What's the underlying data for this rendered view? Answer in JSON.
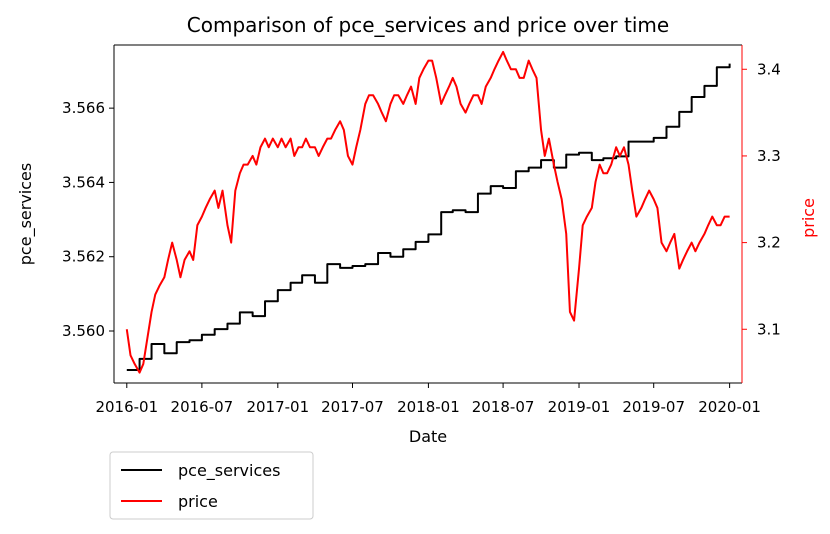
{
  "chart_data": {
    "type": "line",
    "title": "Comparison of pce_services and price over time",
    "xlabel": "Date",
    "ylabel_left": "pce_services",
    "ylabel_right": "price",
    "x_ticks": [
      "2016-01",
      "2016-07",
      "2017-01",
      "2017-07",
      "2018-01",
      "2018-07",
      "2019-01",
      "2019-07",
      "2020-01"
    ],
    "y_left_ticks": [
      "3.560",
      "3.562",
      "3.564",
      "3.566"
    ],
    "y_right_ticks": [
      "3.1",
      "3.2",
      "3.3",
      "3.4"
    ],
    "xlim": [
      "2015-12-01",
      "2020-01-31"
    ],
    "ylim_left": [
      3.5586,
      3.5677
    ],
    "ylim_right": [
      3.038,
      3.428
    ],
    "legend_position": "below-left",
    "colors": {
      "pce_services": "#000000",
      "price": "#ff0000",
      "right_axis": "#ff0000"
    },
    "series": [
      {
        "name": "pce_services",
        "axis": "left",
        "color": "#000000",
        "step": true,
        "points": [
          [
            "2016-01-01",
            3.55895
          ],
          [
            "2016-02-01",
            3.55925
          ],
          [
            "2016-03-01",
            3.55965
          ],
          [
            "2016-04-01",
            3.5594
          ],
          [
            "2016-05-01",
            3.5597
          ],
          [
            "2016-06-01",
            3.55975
          ],
          [
            "2016-07-01",
            3.5599
          ],
          [
            "2016-08-01",
            3.56005
          ],
          [
            "2016-09-01",
            3.5602
          ],
          [
            "2016-10-01",
            3.5605
          ],
          [
            "2016-11-01",
            3.5604
          ],
          [
            "2016-12-01",
            3.5608
          ],
          [
            "2017-01-01",
            3.5611
          ],
          [
            "2017-02-01",
            3.5613
          ],
          [
            "2017-03-01",
            3.5615
          ],
          [
            "2017-04-01",
            3.5613
          ],
          [
            "2017-05-01",
            3.5618
          ],
          [
            "2017-06-01",
            3.5617
          ],
          [
            "2017-07-01",
            3.56175
          ],
          [
            "2017-08-01",
            3.5618
          ],
          [
            "2017-09-01",
            3.5621
          ],
          [
            "2017-10-01",
            3.562
          ],
          [
            "2017-11-01",
            3.5622
          ],
          [
            "2017-12-01",
            3.5624
          ],
          [
            "2018-01-01",
            3.5626
          ],
          [
            "2018-02-01",
            3.5632
          ],
          [
            "2018-03-01",
            3.56325
          ],
          [
            "2018-04-01",
            3.5632
          ],
          [
            "2018-05-01",
            3.5637
          ],
          [
            "2018-06-01",
            3.5639
          ],
          [
            "2018-07-01",
            3.56385
          ],
          [
            "2018-08-01",
            3.5643
          ],
          [
            "2018-09-01",
            3.5644
          ],
          [
            "2018-10-01",
            3.5646
          ],
          [
            "2018-11-01",
            3.5644
          ],
          [
            "2018-12-01",
            3.56475
          ],
          [
            "2019-01-01",
            3.5648
          ],
          [
            "2019-02-01",
            3.5646
          ],
          [
            "2019-03-01",
            3.56465
          ],
          [
            "2019-04-01",
            3.5647
          ],
          [
            "2019-05-01",
            3.5651
          ],
          [
            "2019-06-01",
            3.5651
          ],
          [
            "2019-07-01",
            3.5652
          ],
          [
            "2019-08-01",
            3.5655
          ],
          [
            "2019-09-01",
            3.5659
          ],
          [
            "2019-10-01",
            3.5663
          ],
          [
            "2019-11-01",
            3.5666
          ],
          [
            "2019-12-01",
            3.5671
          ],
          [
            "2020-01-01",
            3.5672
          ]
        ]
      },
      {
        "name": "price",
        "axis": "right",
        "color": "#ff0000",
        "step": false,
        "points": [
          [
            "2016-01-01",
            3.1
          ],
          [
            "2016-01-10",
            3.07
          ],
          [
            "2016-01-20",
            3.06
          ],
          [
            "2016-02-01",
            3.05
          ],
          [
            "2016-02-10",
            3.06
          ],
          [
            "2016-02-20",
            3.09
          ],
          [
            "2016-03-01",
            3.12
          ],
          [
            "2016-03-10",
            3.14
          ],
          [
            "2016-03-20",
            3.15
          ],
          [
            "2016-04-01",
            3.16
          ],
          [
            "2016-04-10",
            3.18
          ],
          [
            "2016-04-20",
            3.2
          ],
          [
            "2016-05-01",
            3.18
          ],
          [
            "2016-05-10",
            3.16
          ],
          [
            "2016-05-20",
            3.18
          ],
          [
            "2016-06-01",
            3.19
          ],
          [
            "2016-06-10",
            3.18
          ],
          [
            "2016-06-20",
            3.22
          ],
          [
            "2016-07-01",
            3.23
          ],
          [
            "2016-07-10",
            3.24
          ],
          [
            "2016-07-20",
            3.25
          ],
          [
            "2016-08-01",
            3.26
          ],
          [
            "2016-08-10",
            3.24
          ],
          [
            "2016-08-20",
            3.26
          ],
          [
            "2016-09-01",
            3.22
          ],
          [
            "2016-09-10",
            3.2
          ],
          [
            "2016-09-20",
            3.26
          ],
          [
            "2016-10-01",
            3.28
          ],
          [
            "2016-10-10",
            3.29
          ],
          [
            "2016-10-20",
            3.29
          ],
          [
            "2016-11-01",
            3.3
          ],
          [
            "2016-11-10",
            3.29
          ],
          [
            "2016-11-20",
            3.31
          ],
          [
            "2016-12-01",
            3.32
          ],
          [
            "2016-12-10",
            3.31
          ],
          [
            "2016-12-20",
            3.32
          ],
          [
            "2017-01-01",
            3.31
          ],
          [
            "2017-01-10",
            3.32
          ],
          [
            "2017-01-20",
            3.31
          ],
          [
            "2017-02-01",
            3.32
          ],
          [
            "2017-02-10",
            3.3
          ],
          [
            "2017-02-20",
            3.31
          ],
          [
            "2017-03-01",
            3.31
          ],
          [
            "2017-03-10",
            3.32
          ],
          [
            "2017-03-20",
            3.31
          ],
          [
            "2017-04-01",
            3.31
          ],
          [
            "2017-04-10",
            3.3
          ],
          [
            "2017-04-20",
            3.31
          ],
          [
            "2017-05-01",
            3.32
          ],
          [
            "2017-05-10",
            3.32
          ],
          [
            "2017-05-20",
            3.33
          ],
          [
            "2017-06-01",
            3.34
          ],
          [
            "2017-06-10",
            3.33
          ],
          [
            "2017-06-20",
            3.3
          ],
          [
            "2017-07-01",
            3.29
          ],
          [
            "2017-07-10",
            3.31
          ],
          [
            "2017-07-20",
            3.33
          ],
          [
            "2017-08-01",
            3.36
          ],
          [
            "2017-08-10",
            3.37
          ],
          [
            "2017-08-20",
            3.37
          ],
          [
            "2017-09-01",
            3.36
          ],
          [
            "2017-09-10",
            3.35
          ],
          [
            "2017-09-20",
            3.34
          ],
          [
            "2017-10-01",
            3.36
          ],
          [
            "2017-10-10",
            3.37
          ],
          [
            "2017-10-20",
            3.37
          ],
          [
            "2017-11-01",
            3.36
          ],
          [
            "2017-11-10",
            3.37
          ],
          [
            "2017-11-20",
            3.38
          ],
          [
            "2017-12-01",
            3.36
          ],
          [
            "2017-12-10",
            3.39
          ],
          [
            "2017-12-20",
            3.4
          ],
          [
            "2018-01-01",
            3.41
          ],
          [
            "2018-01-10",
            3.41
          ],
          [
            "2018-01-20",
            3.39
          ],
          [
            "2018-02-01",
            3.36
          ],
          [
            "2018-02-10",
            3.37
          ],
          [
            "2018-02-20",
            3.38
          ],
          [
            "2018-03-01",
            3.39
          ],
          [
            "2018-03-10",
            3.38
          ],
          [
            "2018-03-20",
            3.36
          ],
          [
            "2018-04-01",
            3.35
          ],
          [
            "2018-04-10",
            3.36
          ],
          [
            "2018-04-20",
            3.37
          ],
          [
            "2018-05-01",
            3.37
          ],
          [
            "2018-05-10",
            3.36
          ],
          [
            "2018-05-20",
            3.38
          ],
          [
            "2018-06-01",
            3.39
          ],
          [
            "2018-06-10",
            3.4
          ],
          [
            "2018-06-20",
            3.41
          ],
          [
            "2018-07-01",
            3.42
          ],
          [
            "2018-07-10",
            3.41
          ],
          [
            "2018-07-20",
            3.4
          ],
          [
            "2018-08-01",
            3.4
          ],
          [
            "2018-08-10",
            3.39
          ],
          [
            "2018-08-20",
            3.39
          ],
          [
            "2018-09-01",
            3.41
          ],
          [
            "2018-09-10",
            3.4
          ],
          [
            "2018-09-20",
            3.39
          ],
          [
            "2018-10-01",
            3.33
          ],
          [
            "2018-10-10",
            3.3
          ],
          [
            "2018-10-20",
            3.32
          ],
          [
            "2018-11-01",
            3.29
          ],
          [
            "2018-11-10",
            3.27
          ],
          [
            "2018-11-20",
            3.25
          ],
          [
            "2018-12-01",
            3.21
          ],
          [
            "2018-12-10",
            3.12
          ],
          [
            "2018-12-20",
            3.11
          ],
          [
            "2019-01-01",
            3.17
          ],
          [
            "2019-01-10",
            3.22
          ],
          [
            "2019-01-20",
            3.23
          ],
          [
            "2019-02-01",
            3.24
          ],
          [
            "2019-02-10",
            3.27
          ],
          [
            "2019-02-20",
            3.29
          ],
          [
            "2019-03-01",
            3.28
          ],
          [
            "2019-03-10",
            3.28
          ],
          [
            "2019-03-20",
            3.29
          ],
          [
            "2019-04-01",
            3.31
          ],
          [
            "2019-04-10",
            3.3
          ],
          [
            "2019-04-20",
            3.31
          ],
          [
            "2019-05-01",
            3.29
          ],
          [
            "2019-05-10",
            3.26
          ],
          [
            "2019-05-20",
            3.23
          ],
          [
            "2019-06-01",
            3.24
          ],
          [
            "2019-06-10",
            3.25
          ],
          [
            "2019-06-20",
            3.26
          ],
          [
            "2019-07-01",
            3.25
          ],
          [
            "2019-07-10",
            3.24
          ],
          [
            "2019-07-20",
            3.2
          ],
          [
            "2019-08-01",
            3.19
          ],
          [
            "2019-08-10",
            3.2
          ],
          [
            "2019-08-20",
            3.21
          ],
          [
            "2019-09-01",
            3.17
          ],
          [
            "2019-09-10",
            3.18
          ],
          [
            "2019-09-20",
            3.19
          ],
          [
            "2019-10-01",
            3.2
          ],
          [
            "2019-10-10",
            3.19
          ],
          [
            "2019-10-20",
            3.2
          ],
          [
            "2019-11-01",
            3.21
          ],
          [
            "2019-11-10",
            3.22
          ],
          [
            "2019-11-20",
            3.23
          ],
          [
            "2019-12-01",
            3.22
          ],
          [
            "2019-12-10",
            3.22
          ],
          [
            "2019-12-20",
            3.23
          ],
          [
            "2020-01-01",
            3.23
          ]
        ]
      }
    ]
  }
}
